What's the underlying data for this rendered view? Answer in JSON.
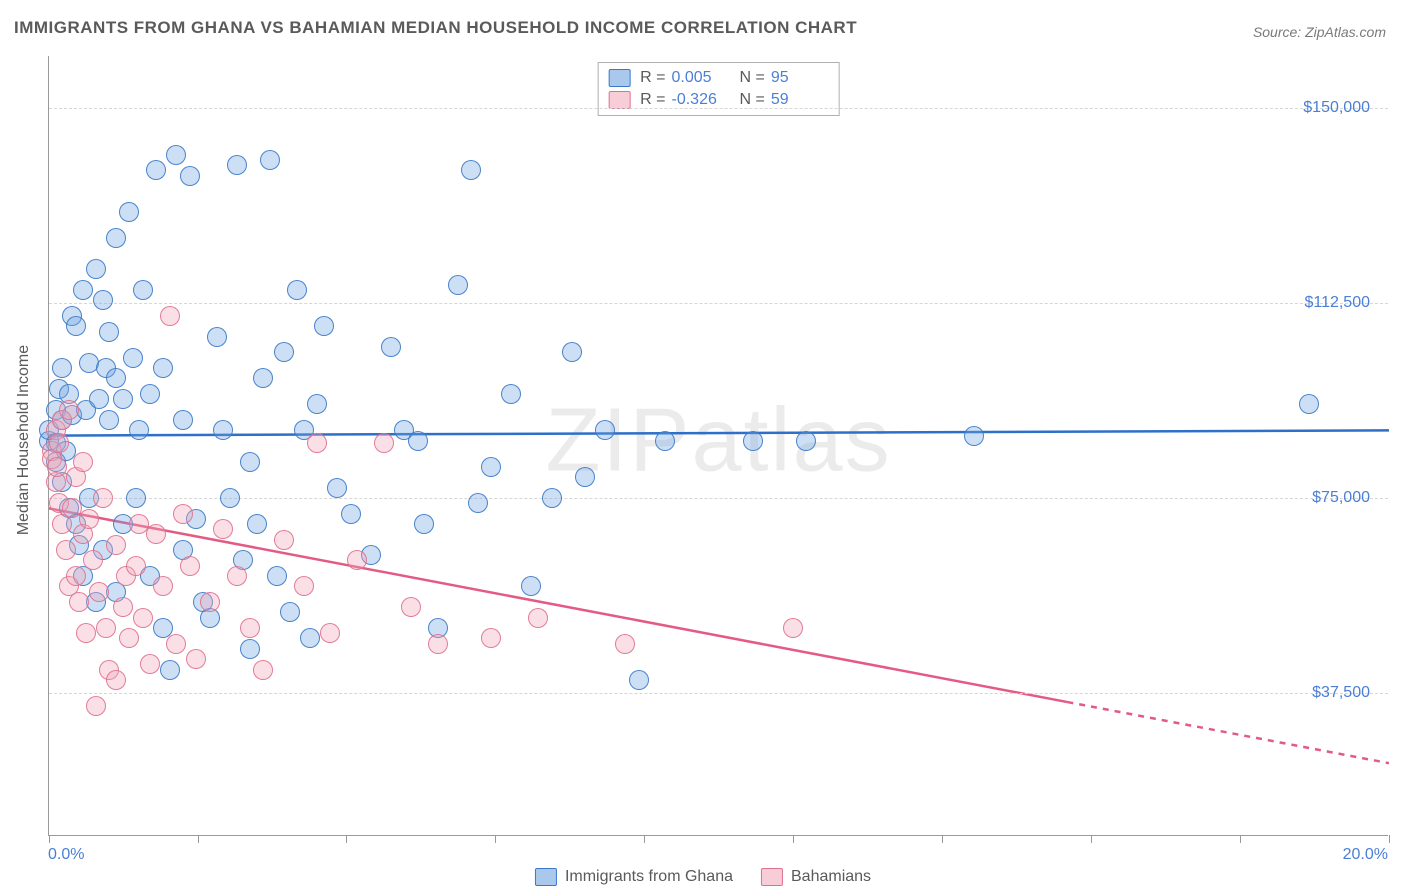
{
  "title": "IMMIGRANTS FROM GHANA VS BAHAMIAN MEDIAN HOUSEHOLD INCOME CORRELATION CHART",
  "source": "Source: ZipAtlas.com",
  "watermark": "ZIPatlas",
  "ylabel": "Median Household Income",
  "chart": {
    "type": "scatter",
    "xlim": [
      0,
      20
    ],
    "ylim": [
      10000,
      160000
    ],
    "x_tick_positions": [
      0,
      2.22,
      4.44,
      6.66,
      8.88,
      11.11,
      13.33,
      15.55,
      17.77,
      20
    ],
    "x_tick_labels_shown": {
      "0": "0.0%",
      "20": "20.0%"
    },
    "y_gridlines": [
      37500,
      75000,
      112500,
      150000
    ],
    "y_tick_labels": {
      "37500": "$37,500",
      "75000": "$75,000",
      "112500": "$112,500",
      "150000": "$150,000"
    },
    "background_color": "#ffffff",
    "grid_color": "#d6d6d6",
    "axis_color": "#9a9a9a",
    "tick_label_color": "#4a7fd6",
    "label_fontsize": 16,
    "title_fontsize": 17,
    "marker_radius": 10,
    "marker_fill_opacity": 0.35,
    "marker_stroke_opacity": 0.9,
    "marker_stroke_width": 1.2,
    "trend_line_width": 2.5
  },
  "series": [
    {
      "key": "ghana",
      "label": "Immigrants from Ghana",
      "color": "#6fa3e0",
      "stroke": "#3a79c9",
      "trend_color": "#2d6fc9",
      "R": "0.005",
      "N": "95",
      "trend": {
        "x1": 0,
        "y1": 87000,
        "x2": 20,
        "y2": 88000,
        "dashed_from_x": null
      },
      "points": [
        [
          0.0,
          86000
        ],
        [
          0.0,
          88000
        ],
        [
          0.1,
          85500
        ],
        [
          0.1,
          92000
        ],
        [
          0.1,
          82000
        ],
        [
          0.15,
          96000
        ],
        [
          0.2,
          90000
        ],
        [
          0.2,
          78000
        ],
        [
          0.2,
          100000
        ],
        [
          0.25,
          84000
        ],
        [
          0.3,
          73000
        ],
        [
          0.3,
          95000
        ],
        [
          0.35,
          91000
        ],
        [
          0.35,
          110000
        ],
        [
          0.4,
          108000
        ],
        [
          0.4,
          70000
        ],
        [
          0.45,
          66000
        ],
        [
          0.5,
          115000
        ],
        [
          0.5,
          60000
        ],
        [
          0.55,
          92000
        ],
        [
          0.6,
          101000
        ],
        [
          0.6,
          75000
        ],
        [
          0.7,
          119000
        ],
        [
          0.7,
          55000
        ],
        [
          0.75,
          94000
        ],
        [
          0.8,
          113000
        ],
        [
          0.8,
          65000
        ],
        [
          0.85,
          100000
        ],
        [
          0.9,
          107000
        ],
        [
          0.9,
          90000
        ],
        [
          1.0,
          98000
        ],
        [
          1.0,
          125000
        ],
        [
          1.0,
          57000
        ],
        [
          1.1,
          70000
        ],
        [
          1.1,
          94000
        ],
        [
          1.2,
          130000
        ],
        [
          1.25,
          102000
        ],
        [
          1.3,
          75000
        ],
        [
          1.35,
          88000
        ],
        [
          1.4,
          115000
        ],
        [
          1.5,
          60000
        ],
        [
          1.5,
          95000
        ],
        [
          1.6,
          138000
        ],
        [
          1.7,
          50000
        ],
        [
          1.7,
          100000
        ],
        [
          1.8,
          42000
        ],
        [
          1.9,
          141000
        ],
        [
          2.0,
          90000
        ],
        [
          2.0,
          65000
        ],
        [
          2.1,
          137000
        ],
        [
          2.2,
          71000
        ],
        [
          2.3,
          55000
        ],
        [
          2.4,
          52000
        ],
        [
          2.5,
          106000
        ],
        [
          2.6,
          88000
        ],
        [
          2.7,
          75000
        ],
        [
          2.8,
          139000
        ],
        [
          2.9,
          63000
        ],
        [
          3.0,
          46000
        ],
        [
          3.0,
          82000
        ],
        [
          3.1,
          70000
        ],
        [
          3.2,
          98000
        ],
        [
          3.3,
          140000
        ],
        [
          3.4,
          60000
        ],
        [
          3.5,
          103000
        ],
        [
          3.6,
          53000
        ],
        [
          3.7,
          115000
        ],
        [
          3.8,
          88000
        ],
        [
          3.9,
          48000
        ],
        [
          4.0,
          93000
        ],
        [
          4.1,
          108000
        ],
        [
          4.3,
          77000
        ],
        [
          4.5,
          72000
        ],
        [
          4.8,
          64000
        ],
        [
          5.1,
          104000
        ],
        [
          5.3,
          88000
        ],
        [
          5.5,
          86000
        ],
        [
          5.6,
          70000
        ],
        [
          5.8,
          50000
        ],
        [
          6.1,
          116000
        ],
        [
          6.3,
          138000
        ],
        [
          6.4,
          74000
        ],
        [
          6.6,
          81000
        ],
        [
          6.9,
          95000
        ],
        [
          7.2,
          58000
        ],
        [
          7.5,
          75000
        ],
        [
          7.8,
          103000
        ],
        [
          8.0,
          79000
        ],
        [
          8.3,
          88000
        ],
        [
          8.8,
          40000
        ],
        [
          9.2,
          86000
        ],
        [
          10.5,
          86000
        ],
        [
          11.3,
          86000
        ],
        [
          13.8,
          87000
        ],
        [
          18.8,
          93000
        ]
      ]
    },
    {
      "key": "bahamians",
      "label": "Bahamians",
      "color": "#f0a6b8",
      "stroke": "#e0708e",
      "trend_color": "#e35a84",
      "R": "-0.326",
      "N": "59",
      "trend": {
        "x1": 0,
        "y1": 73000,
        "x2": 20,
        "y2": 24000,
        "dashed_from_x": 15.2
      },
      "points": [
        [
          0.05,
          84000
        ],
        [
          0.05,
          82500
        ],
        [
          0.1,
          88000
        ],
        [
          0.1,
          78000
        ],
        [
          0.12,
          81000
        ],
        [
          0.15,
          85500
        ],
        [
          0.15,
          74000
        ],
        [
          0.2,
          90000
        ],
        [
          0.2,
          70000
        ],
        [
          0.25,
          65000
        ],
        [
          0.3,
          92000
        ],
        [
          0.3,
          58000
        ],
        [
          0.35,
          73000
        ],
        [
          0.4,
          60000
        ],
        [
          0.4,
          79000
        ],
        [
          0.45,
          55000
        ],
        [
          0.5,
          68000
        ],
        [
          0.5,
          82000
        ],
        [
          0.55,
          49000
        ],
        [
          0.6,
          71000
        ],
        [
          0.65,
          63000
        ],
        [
          0.7,
          35000
        ],
        [
          0.75,
          57000
        ],
        [
          0.8,
          75000
        ],
        [
          0.85,
          50000
        ],
        [
          0.9,
          42000
        ],
        [
          1.0,
          66000
        ],
        [
          1.0,
          40000
        ],
        [
          1.1,
          54000
        ],
        [
          1.15,
          60000
        ],
        [
          1.2,
          48000
        ],
        [
          1.3,
          62000
        ],
        [
          1.35,
          70000
        ],
        [
          1.4,
          52000
        ],
        [
          1.5,
          43000
        ],
        [
          1.6,
          68000
        ],
        [
          1.7,
          58000
        ],
        [
          1.8,
          110000
        ],
        [
          1.9,
          47000
        ],
        [
          2.0,
          72000
        ],
        [
          2.1,
          62000
        ],
        [
          2.2,
          44000
        ],
        [
          2.4,
          55000
        ],
        [
          2.6,
          69000
        ],
        [
          2.8,
          60000
        ],
        [
          3.0,
          50000
        ],
        [
          3.2,
          42000
        ],
        [
          3.5,
          67000
        ],
        [
          3.8,
          58000
        ],
        [
          4.0,
          85500
        ],
        [
          4.2,
          49000
        ],
        [
          4.6,
          63000
        ],
        [
          5.0,
          85500
        ],
        [
          5.4,
          54000
        ],
        [
          5.8,
          47000
        ],
        [
          6.6,
          48000
        ],
        [
          7.3,
          52000
        ],
        [
          8.6,
          47000
        ],
        [
          11.1,
          50000
        ]
      ]
    }
  ],
  "stats_box": {
    "rows": [
      {
        "swatch_fill": "#a9c8ec",
        "swatch_border": "#3a79c9",
        "r_label": "R =",
        "r_val": "0.005",
        "n_label": "N =",
        "n_val": "95"
      },
      {
        "swatch_fill": "#f7cdd7",
        "swatch_border": "#e0708e",
        "r_label": "R =",
        "r_val": "-0.326",
        "n_label": "N =",
        "n_val": "59"
      }
    ]
  },
  "bottom_legend": [
    {
      "swatch_fill": "#a9c8ec",
      "swatch_border": "#3a79c9",
      "label": "Immigrants from Ghana"
    },
    {
      "swatch_fill": "#f7cdd7",
      "swatch_border": "#e0708e",
      "label": "Bahamians"
    }
  ]
}
